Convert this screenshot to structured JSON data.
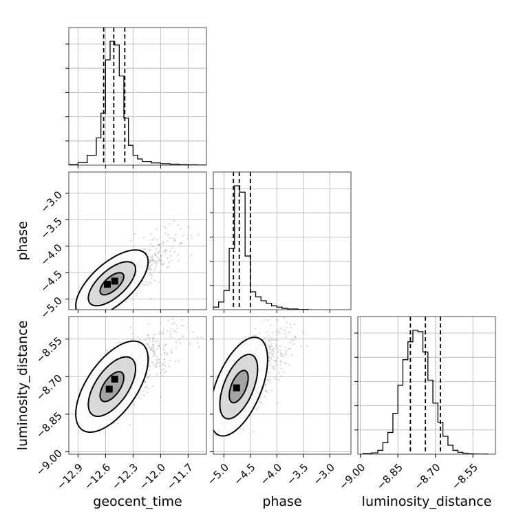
{
  "chart_data": {
    "type": "scatter",
    "parameters": [
      {
        "name": "geocent_time",
        "label": "geocent_time",
        "range": [
          -13.0,
          -11.5
        ],
        "ticks": [
          -12.9,
          -12.6,
          -12.3,
          -12.0,
          -11.7
        ],
        "tick_labels": [
          "−12.9",
          "−12.6",
          "−12.3",
          "−12.0",
          "−11.7"
        ],
        "quantiles": [
          -12.62,
          -12.51,
          -12.39
        ]
      },
      {
        "name": "phase",
        "label": "phase",
        "range": [
          -5.2,
          -2.6
        ],
        "ticks": [
          -5.0,
          -4.5,
          -4.0,
          -3.5,
          -3.0
        ],
        "tick_labels": [
          "−5.0",
          "−4.5",
          "−4.0",
          "−3.5",
          "−3.0"
        ],
        "quantiles": [
          -4.82,
          -4.71,
          -4.5
        ]
      },
      {
        "name": "luminosity_distance",
        "label": "luminosity_distance",
        "range": [
          -9.01,
          -8.46
        ],
        "ticks": [
          -9.0,
          -8.85,
          -8.7,
          -8.55
        ],
        "tick_labels": [
          "−9.00",
          "−8.85",
          "−8.70",
          "−8.55"
        ],
        "quantiles": [
          -8.8,
          -8.74,
          -8.68
        ]
      }
    ],
    "histograms": [
      {
        "parameter": "geocent_time",
        "bin_edges": [
          -13.0,
          -12.9,
          -12.8,
          -12.7,
          -12.65,
          -12.6,
          -12.55,
          -12.5,
          -12.45,
          -12.4,
          -12.35,
          -12.3,
          -12.25,
          -12.2,
          -12.1,
          -12.0,
          -11.9,
          -11.8,
          -11.7,
          -11.6,
          -11.5
        ],
        "counts": [
          0.005,
          0.02,
          0.08,
          0.22,
          0.42,
          0.85,
          1.0,
          0.97,
          0.72,
          0.38,
          0.16,
          0.08,
          0.05,
          0.03,
          0.018,
          0.012,
          0.008,
          0.005,
          0.003,
          0.002
        ]
      },
      {
        "parameter": "phase",
        "bin_edges": [
          -5.2,
          -5.1,
          -5.0,
          -4.9,
          -4.8,
          -4.7,
          -4.6,
          -4.5,
          -4.4,
          -4.3,
          -4.2,
          -4.1,
          -4.0,
          -3.9,
          -3.8,
          -3.6,
          -3.4
        ],
        "counts": [
          0.02,
          0.06,
          0.15,
          0.48,
          0.97,
          0.92,
          0.42,
          0.14,
          0.1,
          0.07,
          0.05,
          0.03,
          0.02,
          0.01,
          0.005,
          0.002
        ]
      },
      {
        "parameter": "luminosity_distance",
        "bin_edges": [
          -8.99,
          -8.955,
          -8.93,
          -8.91,
          -8.89,
          -8.87,
          -8.85,
          -8.83,
          -8.81,
          -8.79,
          -8.77,
          -8.75,
          -8.73,
          -8.71,
          -8.69,
          -8.67,
          -8.65,
          -8.63,
          -8.61,
          -8.59,
          -8.57,
          -8.55,
          -8.53,
          -8.49
        ],
        "counts": [
          0.005,
          0.01,
          0.03,
          0.09,
          0.17,
          0.32,
          0.54,
          0.74,
          0.88,
          0.97,
          0.96,
          0.8,
          0.58,
          0.4,
          0.25,
          0.14,
          0.07,
          0.03,
          0.015,
          0.008,
          0.004,
          0.002,
          0.001
        ]
      }
    ],
    "pair_plots": [
      {
        "x": "geocent_time",
        "y": "phase",
        "center": [
          -12.53,
          -4.71
        ],
        "sigma": [
          0.13,
          0.21
        ],
        "rho": 0.65,
        "contour_levels": [
          0.39,
          0.86,
          0.99
        ],
        "peak_cells": [
          [
            -12.58,
            -4.72
          ],
          [
            -12.5,
            -4.66
          ]
        ]
      },
      {
        "x": "geocent_time",
        "y": "luminosity_distance",
        "center": [
          -12.53,
          -8.74
        ],
        "sigma": [
          0.13,
          0.06
        ],
        "rho": 0.6,
        "contour_levels": [
          0.39,
          0.86,
          0.99
        ],
        "peak_cells": [
          [
            -12.56,
            -8.75
          ],
          [
            -12.5,
            -8.71
          ]
        ]
      },
      {
        "x": "phase",
        "y": "luminosity_distance",
        "center": [
          -4.72,
          -8.74
        ],
        "sigma": [
          0.18,
          0.065
        ],
        "rho": 0.55,
        "contour_levels": [
          0.39,
          0.86,
          0.99
        ],
        "peak_cells": [
          [
            -4.76,
            -8.745
          ]
        ]
      }
    ],
    "grid": true,
    "xlabel": "",
    "ylabel": "",
    "title": ""
  }
}
